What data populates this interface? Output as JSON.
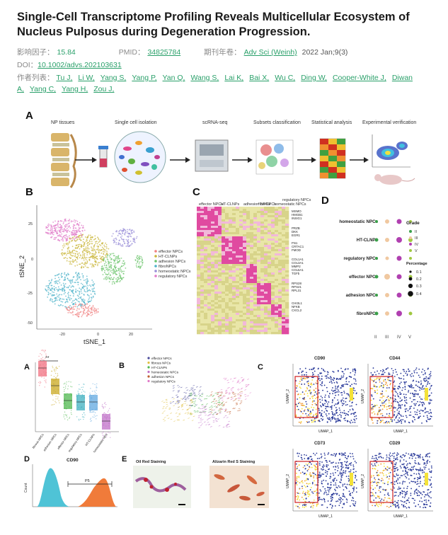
{
  "article": {
    "title": "Single-Cell Transcriptome Profiling Reveals Multicellular Ecosystem of Nucleus Pulposus during Degeneration Progression.",
    "impact_label": "影响因子：",
    "impact_value": "15.84",
    "pmid_label": "PMID：",
    "pmid_value": "34825784",
    "journal_label": "期刊年卷：",
    "journal_value": "Adv Sci (Weinh)",
    "journal_issue": "2022 Jan;9(3)",
    "doi_label": "DOI：",
    "doi_value": "10.1002/advs.202103631",
    "authors_label": "作者列表：",
    "authors": [
      "Tu J,",
      "Li W,",
      "Yang S,",
      "Yang P,",
      "Yan Q,",
      "Wang S,",
      "Lai K,",
      "Bai X,",
      "Wu C,",
      "Ding W,",
      "Cooper-White J,",
      "Diwan A,",
      "Yang C,",
      "Yang H,",
      "Zou J,"
    ]
  },
  "figure_top": {
    "panel_a_letter": "A",
    "workflow_steps": [
      "NP tissues",
      "Single cell isolation",
      "scRNA-seq",
      "Subsets classification",
      "Statistical analysis",
      "Experimental verification"
    ],
    "panel_b_letter": "B",
    "tsne_xlabel": "tSNE_1",
    "tsne_ylabel": "tSNE_2",
    "tsne_xticks": [
      "-20",
      "0",
      "20"
    ],
    "tsne_yticks": [
      "25",
      "0",
      "-25",
      "-50"
    ],
    "tsne_legend": [
      "effector NPCs",
      "HT-CLNPs",
      "adhesion NPCs",
      "fibroNPCs",
      "homeostatic NPCs",
      "regulatory NPCs"
    ],
    "panel_c_letter": "C",
    "heatmap_columns": [
      "effector NPCs",
      "HT-CLNPs",
      "adhesion NPCs",
      "fibroNPCs",
      "homeostatic NPCs",
      "regulatory NPCs"
    ],
    "heatmap_genes": [
      "MSMO",
      "HMGB1",
      "INSIG1",
      "PRZB",
      "DKK",
      "EGR1",
      "FN1",
      "CRTAC1",
      "FMOD",
      "COL1A1",
      "COL3A1",
      "MMP2",
      "COL6A1",
      "TGFb",
      "RPS28",
      "RPS21",
      "RPL31",
      "CHI3L1",
      "NFKB",
      "CXCL2"
    ],
    "panel_d_letter": "D",
    "dot_rows": [
      "homeostatic NPCs",
      "HT-CLNPs",
      "regulatory NPCs",
      "effector NPCs",
      "adhesion NPCs",
      "fibroNPCs"
    ],
    "dot_columns": [
      "II",
      "III",
      "IV",
      "V"
    ],
    "grade_title": "Grade",
    "grade_items": [
      "II",
      "III",
      "IV",
      "V"
    ],
    "percentage_title": "Percentage",
    "percentage_items": [
      "0.1",
      "0.2",
      "0.3",
      "0.4"
    ]
  },
  "figure_bottom": {
    "panel_a_letter": "A",
    "significance": "**",
    "box_labels": [
      "fibrous NPCs",
      "adhesion NPCs",
      "effector NPCs",
      "regulatory NPCs",
      "HT-CLNPs",
      "homeostatic NPs"
    ],
    "panel_b_letter": "B",
    "velocity_legend": [
      "effector NPCs",
      "fibrous NPCs",
      "HT-CLNPs",
      "homeostatic NPCs",
      "adhesion NPCs",
      "regulatory NPCs"
    ],
    "panel_c_letter": "C",
    "umap_titles": [
      "CD90",
      "CD44",
      "CD73",
      "CD29"
    ],
    "umap_xlabel": "UMAP_1",
    "umap_ylabel": "UMAP_2",
    "panel_d_letter": "D",
    "flow_title": "CD90",
    "flow_gate": "P5",
    "flow_ylabel": "Count",
    "panel_e_letter": "E",
    "stain_titles": [
      "Oil Red Staining",
      "Alizarin Red S Staining"
    ]
  },
  "colors": {
    "accent_green": "#2aa06a",
    "effector": "#f08080",
    "htclnp": "#c9b63a",
    "adhesion": "#6cc46c",
    "fibro": "#4fb3c9",
    "homeostatic": "#9a8fd8",
    "regulatory": "#e07ac8"
  }
}
